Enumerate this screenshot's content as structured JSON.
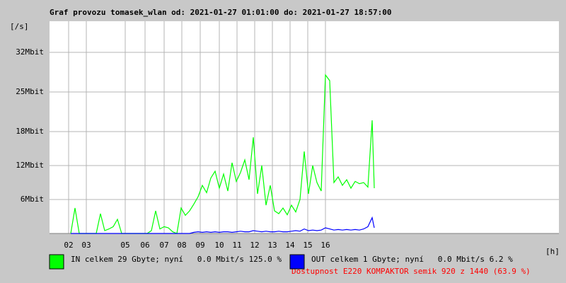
{
  "chart_data": {
    "type": "line",
    "title": "Graf provozu tomasek_wlan od: 2021-01-27 01:01:00 do: 2021-01-27 18:57:00",
    "ylabel": "[/s]",
    "xlabel": "[h]",
    "xlim": [
      0,
      720
    ],
    "xticks": [
      {
        "value": 27,
        "label": "02"
      },
      {
        "value": 52,
        "label": "03"
      },
      {
        "value": 107,
        "label": "05"
      },
      {
        "value": 135,
        "label": "06"
      },
      {
        "value": 162,
        "label": "07"
      },
      {
        "value": 187,
        "label": "08"
      },
      {
        "value": 213,
        "label": "09"
      },
      {
        "value": 240,
        "label": "10"
      },
      {
        "value": 265,
        "label": "11"
      },
      {
        "value": 290,
        "label": "12"
      },
      {
        "value": 315,
        "label": "13"
      },
      {
        "value": 340,
        "label": "14"
      },
      {
        "value": 365,
        "label": "15"
      },
      {
        "value": 390,
        "label": "16"
      }
    ],
    "ylim": [
      0,
      37.5
    ],
    "yticks": [
      {
        "value": 6,
        "label": "6Mbit"
      },
      {
        "value": 12,
        "label": "12Mbit"
      },
      {
        "value": 18,
        "label": "18Mbit"
      },
      {
        "value": 25,
        "label": "25Mbit"
      },
      {
        "value": 32,
        "label": "32Mbit"
      }
    ],
    "grid": true,
    "x": [
      30,
      36,
      42,
      48,
      54,
      60,
      66,
      72,
      78,
      84,
      90,
      96,
      102,
      108,
      114,
      120,
      126,
      132,
      138,
      144,
      150,
      156,
      162,
      168,
      174,
      180,
      186,
      192,
      198,
      204,
      210,
      216,
      222,
      228,
      234,
      240,
      246,
      252,
      258,
      264,
      270,
      276,
      282,
      288,
      294,
      300,
      306,
      312,
      318,
      324,
      330,
      336,
      342,
      348,
      354,
      360,
      366,
      372,
      378,
      384,
      390,
      396,
      402,
      408,
      414,
      420,
      426,
      432,
      438,
      444,
      450,
      456,
      459
    ],
    "series": [
      {
        "name": "IN celkem 29 Gbyte; nyní   0.0 Mbit/s 125.0 %",
        "color": "#00ff00",
        "values": [
          0,
          4.5,
          0,
          0,
          0,
          0,
          0,
          3.5,
          0.5,
          0.8,
          1.2,
          2.5,
          0,
          0,
          0,
          0,
          0,
          0,
          0,
          0.5,
          4,
          0.8,
          1.2,
          1,
          0.3,
          0,
          4.5,
          3.2,
          4,
          5.2,
          6.5,
          8.5,
          7.2,
          9.8,
          11,
          8,
          10.5,
          7.5,
          12.5,
          9.2,
          10.8,
          13,
          9.5,
          17,
          7,
          12,
          5,
          8.5,
          4,
          3.5,
          4.5,
          3.3,
          5,
          3.8,
          6,
          14.5,
          7,
          12,
          9,
          7.5,
          28,
          27,
          9,
          10,
          8.5,
          9.5,
          8,
          9.2,
          8.8,
          9,
          8.2,
          20,
          8
        ]
      },
      {
        "name": "OUT celkem 1 Gbyte; nyní   0.0 Mbit/s 6.2 %",
        "color": "#0000ff",
        "values": [
          0,
          0,
          0,
          0,
          0,
          0,
          0,
          0,
          0,
          0,
          0,
          0,
          0,
          0,
          0,
          0,
          0,
          0,
          0,
          0,
          0,
          0,
          0,
          0,
          0,
          0,
          0,
          0,
          0,
          0.2,
          0.3,
          0.2,
          0.3,
          0.2,
          0.3,
          0.2,
          0.3,
          0.3,
          0.2,
          0.3,
          0.4,
          0.3,
          0.3,
          0.5,
          0.4,
          0.3,
          0.4,
          0.3,
          0.3,
          0.4,
          0.3,
          0.3,
          0.4,
          0.5,
          0.4,
          0.8,
          0.5,
          0.6,
          0.5,
          0.6,
          1,
          0.8,
          0.6,
          0.7,
          0.6,
          0.7,
          0.6,
          0.7,
          0.6,
          0.8,
          1.2,
          2.8,
          1
        ]
      }
    ],
    "note": "Dostupnost E220 KOMPAKTOR semik 920 z 1440 (63.9 %)"
  }
}
